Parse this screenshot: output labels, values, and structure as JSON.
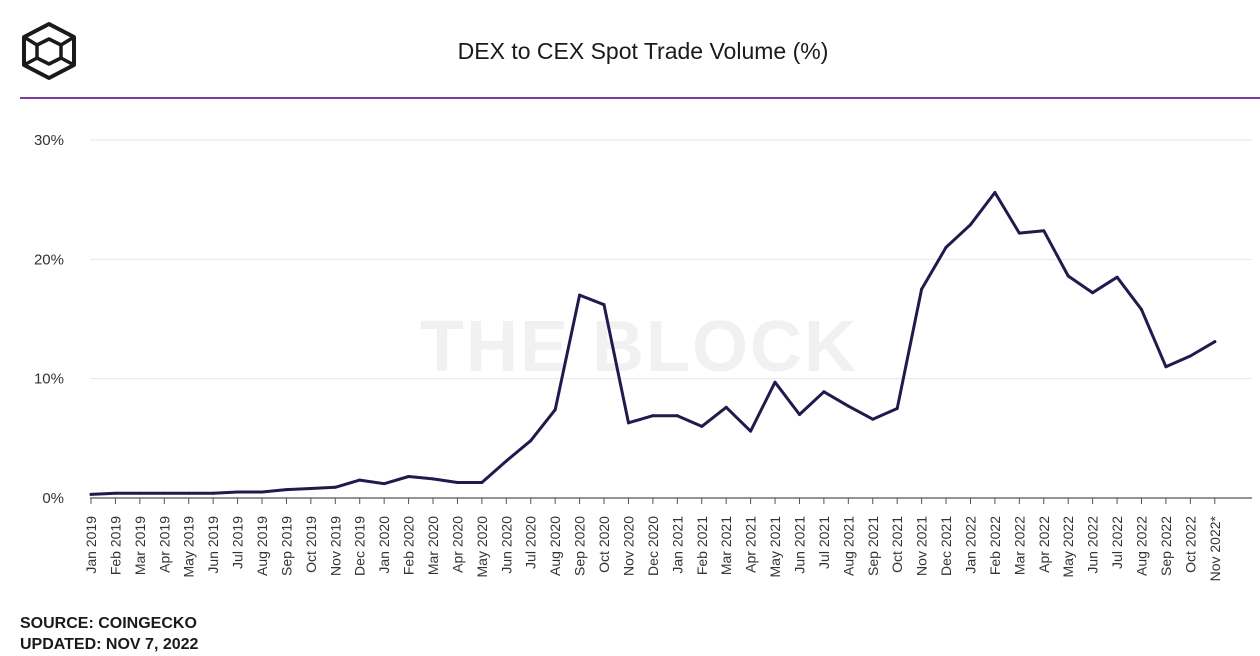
{
  "header": {
    "title": "DEX to CEX Spot Trade Volume (%)",
    "logo_icon": "the-block-cube-logo",
    "rule_color": "#7a3fa0"
  },
  "watermark": "THE BLOCK",
  "footer": {
    "source": "SOURCE: COINGECKO",
    "updated": "UPDATED: NOV 7, 2022"
  },
  "chart_data": {
    "type": "line",
    "title": "DEX to CEX Spot Trade Volume (%)",
    "ylim": [
      0,
      30
    ],
    "yticks": [
      0,
      10,
      20,
      30
    ],
    "ytick_labels": [
      "0%",
      "10%",
      "20%",
      "30%"
    ],
    "grid": true,
    "line_color": "#1f1b4d",
    "categories": [
      "Jan 2019",
      "Feb 2019",
      "Mar 2019",
      "Apr 2019",
      "May 2019",
      "Jun 2019",
      "Jul 2019",
      "Aug 2019",
      "Sep 2019",
      "Oct 2019",
      "Nov 2019",
      "Dec 2019",
      "Jan 2020",
      "Feb 2020",
      "Mar 2020",
      "Apr 2020",
      "May 2020",
      "Jun 2020",
      "Jul 2020",
      "Aug 2020",
      "Sep 2020",
      "Oct 2020",
      "Nov 2020",
      "Dec 2020",
      "Jan 2021",
      "Feb 2021",
      "Mar 2021",
      "Apr 2021",
      "May 2021",
      "Jun 2021",
      "Jul 2021",
      "Aug 2021",
      "Sep 2021",
      "Oct 2021",
      "Nov 2021",
      "Dec 2021",
      "Jan 2022",
      "Feb 2022",
      "Mar 2022",
      "Apr 2022",
      "May 2022",
      "Jun 2022",
      "Jul 2022",
      "Aug 2022",
      "Sep 2022",
      "Oct 2022",
      "Nov 2022*"
    ],
    "values": [
      0.3,
      0.4,
      0.4,
      0.4,
      0.4,
      0.4,
      0.5,
      0.5,
      0.7,
      0.8,
      0.9,
      1.5,
      1.2,
      1.8,
      1.6,
      1.3,
      1.3,
      3.1,
      4.8,
      7.4,
      17.0,
      16.2,
      6.3,
      6.9,
      6.9,
      6.0,
      7.6,
      5.6,
      9.7,
      7.0,
      8.9,
      7.7,
      6.6,
      7.5,
      17.5,
      21.0,
      22.9,
      25.6,
      22.2,
      22.4,
      18.6,
      17.2,
      18.5,
      15.8,
      11.0,
      11.9,
      13.1
    ]
  }
}
